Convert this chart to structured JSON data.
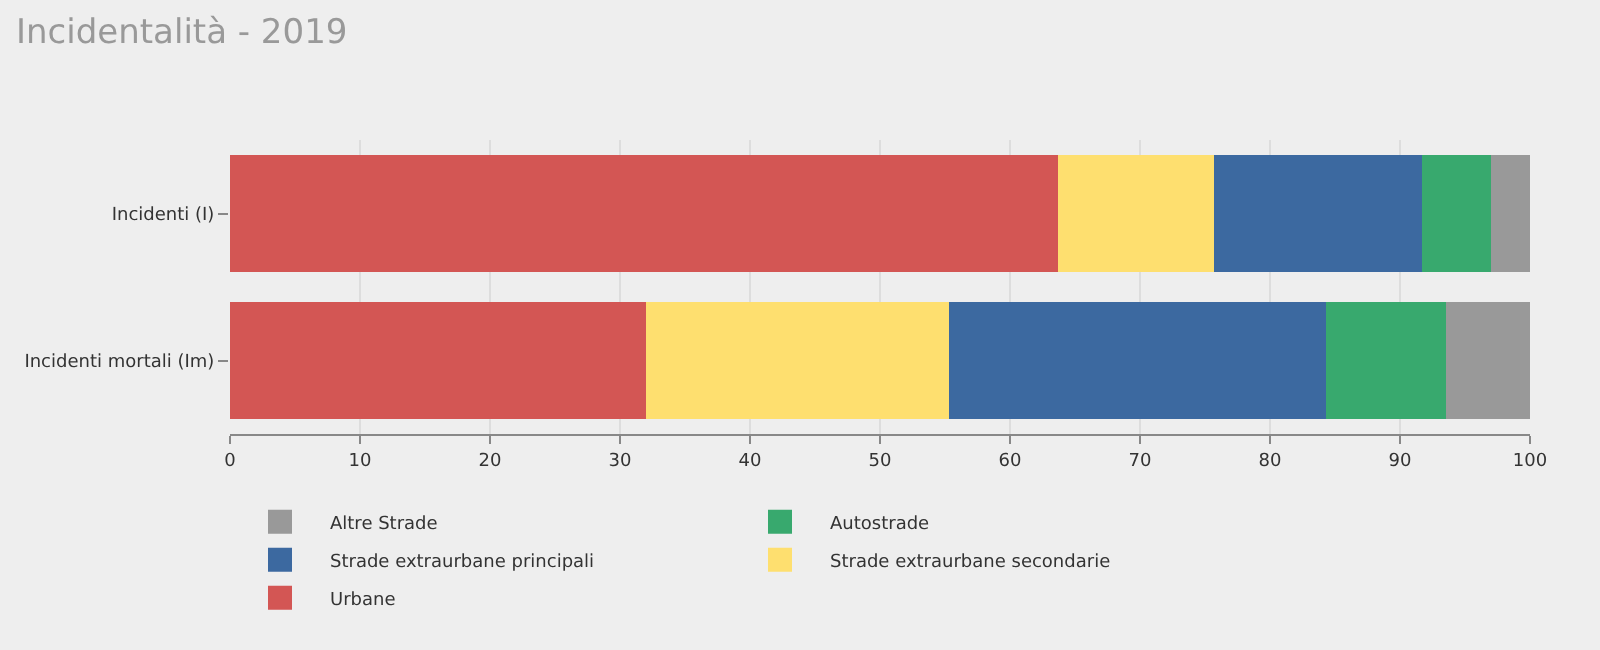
{
  "chart_data": {
    "type": "bar",
    "orientation": "horizontal",
    "stacked": true,
    "title": "Incidentalità - 2019",
    "categories": [
      "Incidenti (I)",
      "Incidenti mortali (Im)"
    ],
    "series": [
      {
        "name": "Urbane",
        "color": "#d35654",
        "values": [
          63.7,
          32.0
        ]
      },
      {
        "name": "Strade extraurbane secondarie",
        "color": "#fedf6f",
        "values": [
          12.0,
          23.3
        ]
      },
      {
        "name": "Strade extraurbane principali",
        "color": "#3c69a0",
        "values": [
          16.0,
          29.0
        ]
      },
      {
        "name": "Autostrade",
        "color": "#38a96e",
        "values": [
          5.3,
          9.2
        ]
      },
      {
        "name": "Altre Strade",
        "color": "#999999",
        "values": [
          3.0,
          6.5
        ]
      }
    ],
    "xlim": [
      0,
      100
    ],
    "xticks": [
      0,
      10,
      20,
      30,
      40,
      50,
      60,
      70,
      80,
      90,
      100
    ],
    "grid": "x",
    "legend": "bottom"
  }
}
